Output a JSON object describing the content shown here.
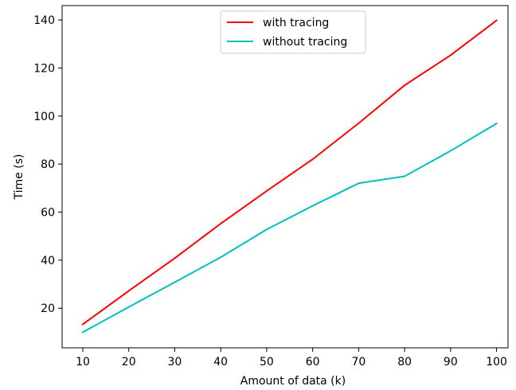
{
  "chart_data": {
    "type": "line",
    "title": "",
    "xlabel": "Amount of data (k)",
    "ylabel": "Time (s)",
    "x": [
      10,
      20,
      30,
      40,
      50,
      60,
      70,
      80,
      90,
      100
    ],
    "xlim": [
      5.5,
      102.5
    ],
    "ylim": [
      3.5,
      146
    ],
    "xticks": [
      10,
      20,
      30,
      40,
      50,
      60,
      70,
      80,
      90,
      100
    ],
    "yticks": [
      20,
      40,
      60,
      80,
      100,
      120,
      140
    ],
    "grid": false,
    "legend_position": "top-center",
    "series": [
      {
        "name": "with tracing",
        "color": "#ff0000",
        "values": [
          13.3,
          27.2,
          40.8,
          55.2,
          68.8,
          82.0,
          97.0,
          112.8,
          125.3,
          139.8
        ]
      },
      {
        "name": "without tracing",
        "color": "#00bfbf",
        "values": [
          10.0,
          20.5,
          30.8,
          41.2,
          52.8,
          62.6,
          72.0,
          74.9,
          85.5,
          96.9
        ]
      }
    ]
  }
}
